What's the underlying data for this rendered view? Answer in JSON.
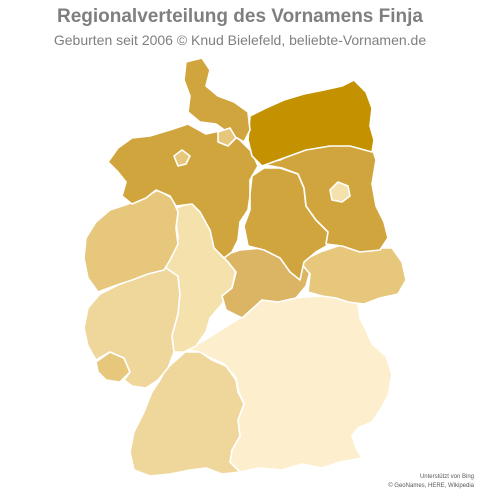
{
  "title": "Regionalverteilung des Vornamens Finja",
  "subtitle": "Geburten seit 2006  © Knud Bielefeld, beliebte-Vornamen.de",
  "attribution": {
    "line1": "Unterstützt von Bing",
    "line2": "© GeoNames, HERE, Wikipedia"
  },
  "colors": {
    "darkest": "#c49100",
    "dark": "#d1a53d",
    "medium": "#dbb564",
    "light": "#e6c77c",
    "pale": "#efd79c",
    "lighter": "#f4e1ac",
    "lightest": "#fdefcd"
  },
  "regions": [
    {
      "name": "Schleswig-Holstein",
      "shade": "dark"
    },
    {
      "name": "Hamburg",
      "shade": "light"
    },
    {
      "name": "Mecklenburg-Vorpommern",
      "shade": "darkest"
    },
    {
      "name": "Niedersachsen",
      "shade": "dark"
    },
    {
      "name": "Bremen",
      "shade": "light"
    },
    {
      "name": "Brandenburg",
      "shade": "dark"
    },
    {
      "name": "Berlin",
      "shade": "lighter"
    },
    {
      "name": "Sachsen-Anhalt",
      "shade": "dark"
    },
    {
      "name": "Nordrhein-Westfalen",
      "shade": "light"
    },
    {
      "name": "Hessen",
      "shade": "lighter"
    },
    {
      "name": "Thüringen",
      "shade": "medium"
    },
    {
      "name": "Sachsen",
      "shade": "light"
    },
    {
      "name": "Rheinland-Pfalz",
      "shade": "pale"
    },
    {
      "name": "Saarland",
      "shade": "light"
    },
    {
      "name": "Baden-Württemberg",
      "shade": "pale"
    },
    {
      "name": "Bayern",
      "shade": "lightest"
    }
  ]
}
